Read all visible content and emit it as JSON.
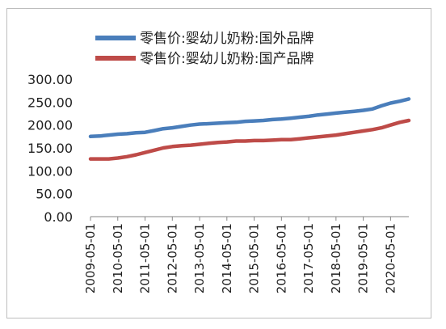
{
  "chart_data": {
    "type": "line",
    "title": "",
    "xlabel": "",
    "ylabel": "",
    "ylim": [
      0,
      300
    ],
    "y_ticks": [
      "0.00",
      "50.00",
      "100.00",
      "150.00",
      "200.00",
      "250.00",
      "300.00"
    ],
    "x_ticks": [
      "2009-05-01",
      "2010-05-01",
      "2011-05-01",
      "2012-05-01",
      "2013-05-01",
      "2014-05-01",
      "2015-05-01",
      "2016-05-01",
      "2017-05-01",
      "2018-05-01",
      "2019-05-01",
      "2020-05-01"
    ],
    "legend_position": "top",
    "grid": false,
    "x": [
      2009.33,
      2009.67,
      2010.0,
      2010.33,
      2010.67,
      2011.0,
      2011.33,
      2011.67,
      2012.0,
      2012.33,
      2012.67,
      2013.0,
      2013.33,
      2013.67,
      2014.0,
      2014.33,
      2014.67,
      2015.0,
      2015.33,
      2015.67,
      2016.0,
      2016.33,
      2016.67,
      2017.0,
      2017.33,
      2017.67,
      2018.0,
      2018.33,
      2018.67,
      2019.0,
      2019.33,
      2019.67,
      2020.0,
      2020.33,
      2020.67,
      2021.0
    ],
    "series": [
      {
        "name": "零售价:婴幼儿奶粉:国外品牌",
        "color": "#4a7ebb",
        "values": [
          175,
          176,
          178,
          180,
          181,
          183,
          184,
          188,
          192,
          194,
          197,
          200,
          202,
          203,
          204,
          205,
          206,
          208,
          209,
          210,
          212,
          213,
          215,
          217,
          219,
          222,
          224,
          226,
          228,
          230,
          232,
          235,
          242,
          248,
          252,
          257
        ]
      },
      {
        "name": "零售价:婴幼儿奶粉:国产品牌",
        "color": "#be4b48",
        "values": [
          126,
          126,
          126,
          128,
          131,
          135,
          140,
          145,
          150,
          153,
          155,
          156,
          158,
          160,
          162,
          163,
          165,
          165,
          166,
          166,
          167,
          168,
          168,
          170,
          172,
          174,
          176,
          178,
          181,
          184,
          187,
          190,
          194,
          200,
          206,
          210
        ]
      }
    ]
  }
}
